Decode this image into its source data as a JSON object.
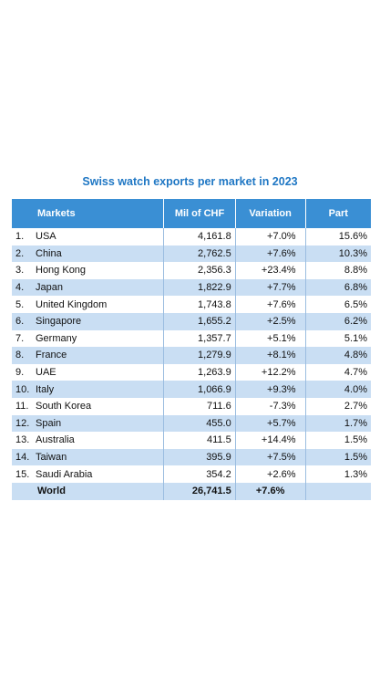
{
  "title": "Swiss watch exports per market in 2023",
  "table": {
    "header": [
      "Markets",
      "Mil of CHF",
      "Variation",
      "Part"
    ],
    "rows": [
      [
        "1.",
        "USA",
        "4,161.8",
        "+7.0%",
        "15.6%"
      ],
      [
        "2.",
        "China",
        "2,762.5",
        "+7.6%",
        "10.3%"
      ],
      [
        "3.",
        "Hong Kong",
        "2,356.3",
        "+23.4%",
        "8.8%"
      ],
      [
        "4.",
        "Japan",
        "1,822.9",
        "+7.7%",
        "6.8%"
      ],
      [
        "5.",
        "United Kingdom",
        "1,743.8",
        "+7.6%",
        "6.5%"
      ],
      [
        "6.",
        "Singapore",
        "1,655.2",
        "+2.5%",
        "6.2%"
      ],
      [
        "7.",
        "Germany",
        "1,357.7",
        "+5.1%",
        "5.1%"
      ],
      [
        "8.",
        "France",
        "1,279.9",
        "+8.1%",
        "4.8%"
      ],
      [
        "9.",
        "UAE",
        "1,263.9",
        "+12.2%",
        "4.7%"
      ],
      [
        "10.",
        "Italy",
        "1,066.9",
        "+9.3%",
        "4.0%"
      ],
      [
        "11.",
        "South Korea",
        "711.6",
        "-7.3%",
        "2.7%"
      ],
      [
        "12.",
        "Spain",
        "455.0",
        "+5.7%",
        "1.7%"
      ],
      [
        "13.",
        "Australia",
        "411.5",
        "+14.4%",
        "1.5%"
      ],
      [
        "14.",
        "Taiwan",
        "395.9",
        "+7.5%",
        "1.5%"
      ],
      [
        "15.",
        "Saudi Arabia",
        "354.2",
        "+2.6%",
        "1.3%"
      ]
    ],
    "total": {
      "label": "World",
      "value": "26,741.5",
      "variation": "+7.6%"
    }
  }
}
